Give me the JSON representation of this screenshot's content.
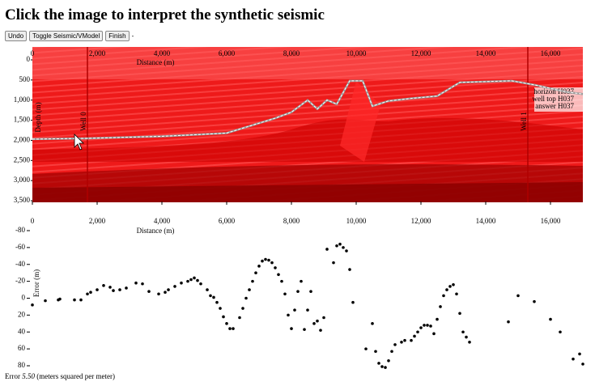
{
  "header": {
    "title": "Click the image to interpret the synthetic seismic"
  },
  "buttons": [
    "Undo",
    "Toggle Seismic/VModel",
    "Finish"
  ],
  "button_suffix": "-",
  "seismic": {
    "x_label": "Distance (m)",
    "y_label": "Depth (m)",
    "xlim": [
      0,
      17000
    ],
    "xticks": [
      0,
      {
        "value": 2000,
        "label": "2,000"
      },
      {
        "value": 4000,
        "label": "4,000"
      },
      {
        "value": 6000,
        "label": "6,000"
      },
      {
        "value": 8000,
        "label": "8,000"
      },
      {
        "value": 10000,
        "label": "10,000"
      },
      {
        "value": 12000,
        "label": "12,000"
      },
      {
        "value": 14000,
        "label": "14,000"
      },
      {
        "value": 16000,
        "label": "16,000"
      }
    ],
    "ylim": [
      0,
      3500
    ],
    "yticks": [
      0,
      500,
      {
        "value": 1000,
        "label": "1,000"
      },
      {
        "value": 1500,
        "label": "1,500"
      },
      {
        "value": 2000,
        "label": "2,000"
      },
      {
        "value": 2500,
        "label": "2,500"
      },
      {
        "value": 3000,
        "label": "3,000"
      },
      {
        "value": 3500,
        "label": "3,500"
      }
    ],
    "wells": [
      {
        "name": "Well 0",
        "distance": 1700
      },
      {
        "name": "Well 1",
        "distance": 15300
      }
    ],
    "legend": [
      "horizon H037",
      "well top H037",
      "answer H037"
    ],
    "horizon": {
      "distance": [
        0,
        1700,
        4000,
        6000,
        7500,
        8000,
        8500,
        8800,
        9100,
        9400,
        9800,
        10200,
        10500,
        11000,
        11800,
        12500,
        13200,
        14000,
        14800,
        15500,
        16500,
        17000
      ],
      "depth": [
        1970,
        1950,
        1900,
        1820,
        1450,
        1300,
        1000,
        1220,
        1000,
        1100,
        520,
        520,
        1150,
        1020,
        950,
        900,
        560,
        540,
        520,
        620,
        800,
        850
      ]
    }
  },
  "error_plot": {
    "y_label": "Error (m)",
    "x_label": "Distance (m)",
    "xlim": [
      0,
      17000
    ],
    "xticks": [
      0,
      {
        "value": 2000,
        "label": "2,000"
      },
      {
        "value": 4000,
        "label": "4,000"
      },
      {
        "value": 6000,
        "label": "6,000"
      },
      {
        "value": 8000,
        "label": "8,000"
      },
      {
        "value": 10000,
        "label": "10,000"
      },
      {
        "value": 12000,
        "label": "12,000"
      },
      {
        "value": 14000,
        "label": "14,000"
      },
      {
        "value": 16000,
        "label": "16,000"
      }
    ],
    "ylim": [
      -80,
      80
    ],
    "yticks": [
      -80,
      -60,
      -40,
      -20,
      0,
      20,
      40,
      60,
      80
    ],
    "x": [
      0,
      400,
      800,
      850,
      1300,
      1500,
      1700,
      1800,
      2000,
      2200,
      2400,
      2500,
      2700,
      2900,
      3200,
      3400,
      3600,
      3900,
      4100,
      4200,
      4400,
      4600,
      4800,
      4900,
      5000,
      5100,
      5200,
      5400,
      5500,
      5600,
      5700,
      5800,
      5900,
      6000,
      6100,
      6200,
      6400,
      6500,
      6600,
      6700,
      6800,
      6900,
      7000,
      7100,
      7200,
      7300,
      7400,
      7500,
      7600,
      7700,
      7800,
      7900,
      8000,
      8100,
      8200,
      8300,
      8400,
      8500,
      8600,
      8700,
      8800,
      8900,
      9000,
      9100,
      9300,
      9400,
      9500,
      9600,
      9700,
      9800,
      9900,
      10300,
      10500,
      10600,
      10700,
      10800,
      10900,
      11000,
      11100,
      11200,
      11400,
      11500,
      11700,
      11800,
      11900,
      12000,
      12100,
      12200,
      12300,
      12400,
      12500,
      12600,
      12700,
      12800,
      12900,
      13000,
      13100,
      13200,
      13300,
      13400,
      13500,
      14700,
      15000,
      15500,
      16000,
      16300,
      16700,
      16900,
      17000
    ],
    "values": [
      8,
      3,
      2,
      1,
      2,
      2,
      -5,
      -7,
      -10,
      -15,
      -13,
      -9,
      -10,
      -12,
      -18,
      -17,
      -8,
      -5,
      -7,
      -10,
      -14,
      -18,
      -20,
      -22,
      -24,
      -21,
      -17,
      -10,
      -3,
      -1,
      5,
      12,
      22,
      30,
      36,
      36,
      23,
      12,
      0,
      -10,
      -20,
      -30,
      -38,
      -44,
      -46,
      -45,
      -42,
      -36,
      -28,
      -20,
      -5,
      20,
      36,
      14,
      -8,
      -20,
      37,
      14,
      -8,
      30,
      27,
      38,
      23,
      -58,
      -42,
      -62,
      -64,
      -60,
      -56,
      -34,
      5,
      60,
      30,
      63,
      77,
      81,
      82,
      74,
      63,
      55,
      52,
      50,
      50,
      45,
      40,
      35,
      32,
      32,
      33,
      42,
      25,
      10,
      -3,
      -10,
      -14,
      -16,
      -5,
      18,
      40,
      46,
      52,
      28,
      -3,
      4,
      25,
      40,
      72,
      66,
      78
    ]
  },
  "footer": {
    "label": "Error",
    "value": "5.50",
    "units": "(meters squared per meter)"
  }
}
